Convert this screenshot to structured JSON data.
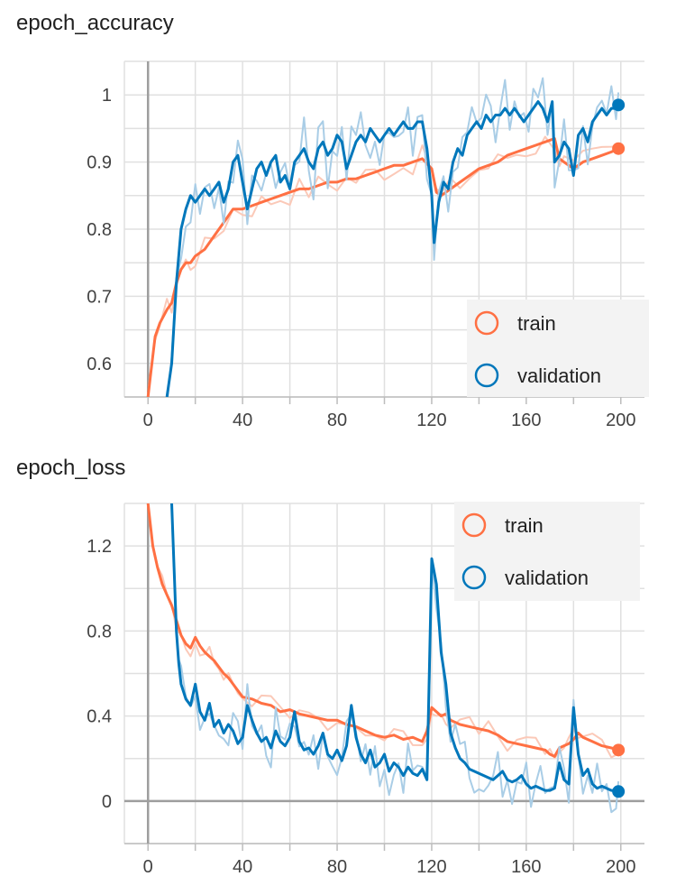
{
  "colors": {
    "train": "#ff7043",
    "validation": "#0077bb",
    "train_raw": "#fbc9b8",
    "validation_raw": "#a9cde6",
    "grid": "#e0e0e0",
    "axis": "#9e9e9e",
    "legend_bg": "#f3f3f3"
  },
  "chart_data": [
    {
      "type": "line",
      "title": "epoch_accuracy",
      "xlim": [
        -10,
        210
      ],
      "ylim": [
        0.55,
        1.05
      ],
      "x_ticks": [
        0,
        40,
        80,
        120,
        160,
        200
      ],
      "y_ticks": [
        0.6,
        0.7,
        0.8,
        0.9,
        1
      ],
      "grid": true,
      "legend_position": "bottom-right",
      "series": [
        {
          "name": "train",
          "x": [
            0,
            1,
            3,
            5,
            8,
            10,
            12,
            14,
            16,
            18,
            20,
            24,
            28,
            32,
            36,
            40,
            44,
            48,
            52,
            56,
            60,
            64,
            68,
            72,
            76,
            80,
            84,
            88,
            92,
            96,
            100,
            104,
            108,
            112,
            116,
            120,
            122,
            124,
            128,
            132,
            136,
            140,
            144,
            148,
            152,
            156,
            160,
            164,
            168,
            172,
            174,
            176,
            180,
            184,
            188,
            192,
            196,
            199
          ],
          "values": [
            0.55,
            0.58,
            0.64,
            0.66,
            0.68,
            0.69,
            0.72,
            0.74,
            0.75,
            0.75,
            0.76,
            0.77,
            0.79,
            0.81,
            0.83,
            0.83,
            0.835,
            0.84,
            0.845,
            0.85,
            0.855,
            0.86,
            0.86,
            0.865,
            0.87,
            0.87,
            0.875,
            0.875,
            0.88,
            0.885,
            0.89,
            0.895,
            0.895,
            0.9,
            0.905,
            0.89,
            0.855,
            0.85,
            0.86,
            0.87,
            0.88,
            0.89,
            0.895,
            0.9,
            0.91,
            0.915,
            0.92,
            0.925,
            0.93,
            0.935,
            0.905,
            0.9,
            0.89,
            0.9,
            0.905,
            0.91,
            0.915,
            0.92
          ],
          "last_point": [
            199,
            0.92
          ]
        },
        {
          "name": "validation",
          "x": [
            8,
            10,
            12,
            14,
            16,
            18,
            20,
            22,
            24,
            26,
            28,
            30,
            32,
            34,
            36,
            38,
            40,
            42,
            44,
            46,
            48,
            50,
            52,
            54,
            56,
            58,
            60,
            62,
            64,
            66,
            68,
            70,
            72,
            74,
            76,
            78,
            80,
            82,
            84,
            86,
            88,
            90,
            92,
            94,
            96,
            98,
            100,
            102,
            104,
            106,
            108,
            110,
            112,
            114,
            116,
            118,
            120,
            121,
            123,
            125,
            127,
            129,
            131,
            133,
            135,
            137,
            139,
            141,
            143,
            145,
            147,
            149,
            151,
            153,
            155,
            157,
            159,
            161,
            163,
            165,
            167,
            169,
            171,
            172,
            174,
            176,
            178,
            180,
            182,
            184,
            186,
            188,
            190,
            192,
            194,
            196,
            198,
            199
          ],
          "values": [
            0.55,
            0.6,
            0.72,
            0.8,
            0.83,
            0.85,
            0.84,
            0.85,
            0.86,
            0.85,
            0.86,
            0.87,
            0.84,
            0.86,
            0.9,
            0.91,
            0.87,
            0.83,
            0.86,
            0.89,
            0.9,
            0.88,
            0.9,
            0.91,
            0.87,
            0.88,
            0.86,
            0.9,
            0.91,
            0.92,
            0.9,
            0.89,
            0.92,
            0.93,
            0.91,
            0.92,
            0.94,
            0.93,
            0.89,
            0.91,
            0.93,
            0.94,
            0.93,
            0.95,
            0.94,
            0.93,
            0.94,
            0.95,
            0.94,
            0.95,
            0.96,
            0.95,
            0.95,
            0.96,
            0.96,
            0.92,
            0.85,
            0.78,
            0.84,
            0.87,
            0.86,
            0.9,
            0.92,
            0.91,
            0.94,
            0.95,
            0.96,
            0.95,
            0.97,
            0.96,
            0.97,
            0.97,
            0.98,
            0.97,
            0.98,
            0.97,
            0.96,
            0.97,
            0.98,
            0.99,
            0.98,
            0.96,
            0.99,
            0.9,
            0.91,
            0.93,
            0.92,
            0.88,
            0.94,
            0.95,
            0.93,
            0.96,
            0.97,
            0.98,
            0.97,
            0.98,
            0.98,
            0.985
          ],
          "last_point": [
            199,
            0.985
          ]
        }
      ]
    },
    {
      "type": "line",
      "title": "epoch_loss",
      "xlim": [
        -10,
        210
      ],
      "ylim": [
        -0.2,
        1.4
      ],
      "x_ticks": [
        0,
        40,
        80,
        120,
        160,
        200
      ],
      "y_ticks": [
        0,
        0.4,
        0.8,
        1.2
      ],
      "grid": true,
      "legend_position": "top-right",
      "series": [
        {
          "name": "train",
          "x": [
            0,
            2,
            4,
            6,
            8,
            10,
            12,
            14,
            16,
            18,
            20,
            22,
            24,
            26,
            28,
            30,
            32,
            34,
            36,
            38,
            40,
            44,
            48,
            52,
            56,
            60,
            64,
            68,
            72,
            76,
            80,
            84,
            88,
            92,
            96,
            100,
            104,
            108,
            112,
            116,
            118,
            120,
            122,
            124,
            126,
            128,
            132,
            136,
            140,
            144,
            148,
            152,
            156,
            160,
            164,
            168,
            170,
            172,
            174,
            176,
            178,
            180,
            182,
            184,
            188,
            192,
            196,
            199
          ],
          "values": [
            1.4,
            1.2,
            1.1,
            1.02,
            0.97,
            0.92,
            0.85,
            0.78,
            0.74,
            0.72,
            0.77,
            0.73,
            0.7,
            0.68,
            0.66,
            0.63,
            0.6,
            0.58,
            0.55,
            0.52,
            0.49,
            0.48,
            0.46,
            0.45,
            0.42,
            0.43,
            0.41,
            0.4,
            0.39,
            0.38,
            0.38,
            0.36,
            0.35,
            0.33,
            0.31,
            0.3,
            0.31,
            0.29,
            0.3,
            0.28,
            0.33,
            0.44,
            0.42,
            0.4,
            0.41,
            0.38,
            0.36,
            0.35,
            0.34,
            0.33,
            0.31,
            0.28,
            0.27,
            0.26,
            0.25,
            0.24,
            0.22,
            0.21,
            0.25,
            0.26,
            0.27,
            0.29,
            0.32,
            0.3,
            0.28,
            0.26,
            0.25,
            0.24
          ],
          "last_point": [
            199,
            0.24
          ]
        },
        {
          "name": "validation",
          "x": [
            10,
            11,
            12,
            13,
            14,
            16,
            18,
            20,
            22,
            24,
            26,
            28,
            30,
            32,
            34,
            36,
            38,
            40,
            42,
            44,
            46,
            48,
            50,
            52,
            54,
            56,
            58,
            60,
            62,
            64,
            66,
            68,
            70,
            72,
            74,
            76,
            78,
            80,
            82,
            84,
            86,
            88,
            90,
            92,
            94,
            96,
            98,
            100,
            102,
            104,
            106,
            108,
            110,
            112,
            114,
            116,
            118,
            119,
            120,
            122,
            124,
            126,
            128,
            130,
            132,
            134,
            136,
            138,
            140,
            142,
            144,
            146,
            148,
            150,
            152,
            154,
            156,
            158,
            160,
            162,
            164,
            166,
            168,
            170,
            172,
            174,
            176,
            178,
            180,
            182,
            184,
            186,
            188,
            190,
            192,
            194,
            196,
            198,
            199
          ],
          "values": [
            1.4,
            1.1,
            0.8,
            0.65,
            0.55,
            0.48,
            0.45,
            0.55,
            0.42,
            0.38,
            0.46,
            0.35,
            0.38,
            0.32,
            0.36,
            0.33,
            0.27,
            0.3,
            0.45,
            0.38,
            0.32,
            0.28,
            0.3,
            0.25,
            0.33,
            0.28,
            0.26,
            0.3,
            0.42,
            0.28,
            0.24,
            0.25,
            0.22,
            0.26,
            0.32,
            0.22,
            0.2,
            0.24,
            0.19,
            0.26,
            0.45,
            0.3,
            0.22,
            0.18,
            0.24,
            0.16,
            0.18,
            0.22,
            0.14,
            0.18,
            0.16,
            0.12,
            0.16,
            0.13,
            0.12,
            0.15,
            0.1,
            0.6,
            1.14,
            1.02,
            0.7,
            0.55,
            0.32,
            0.25,
            0.2,
            0.18,
            0.15,
            0.14,
            0.13,
            0.12,
            0.11,
            0.1,
            0.12,
            0.14,
            0.1,
            0.09,
            0.1,
            0.12,
            0.08,
            0.06,
            0.07,
            0.06,
            0.05,
            0.05,
            0.06,
            0.18,
            0.1,
            0.08,
            0.44,
            0.22,
            0.12,
            0.15,
            0.08,
            0.06,
            0.07,
            0.06,
            0.05,
            0.05,
            0.045
          ],
          "last_point": [
            199,
            0.045
          ]
        }
      ]
    }
  ]
}
